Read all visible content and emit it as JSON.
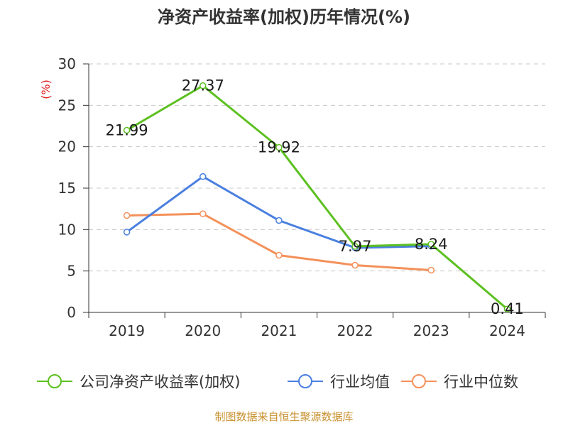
{
  "chart_data": {
    "type": "line",
    "title": "净资产收益率(加权)历年情况(%)",
    "ylabel": "(%)",
    "xlabel": "",
    "categories": [
      "2019",
      "2020",
      "2021",
      "2022",
      "2023",
      "2024"
    ],
    "ylim": [
      0,
      30
    ],
    "yticks": [
      0,
      5,
      10,
      15,
      20,
      25,
      30
    ],
    "grid": true,
    "legend_position": "bottom",
    "series": [
      {
        "name": "公司净资产收益率(加权)",
        "color": "#5cc020",
        "values": [
          21.99,
          27.37,
          19.92,
          7.97,
          8.24,
          0.41
        ],
        "labels": [
          "21.99",
          "27.37",
          "19.92",
          "7.97",
          "8.24",
          "0.41"
        ]
      },
      {
        "name": "行业均值",
        "color": "#4a7fe0",
        "values": [
          9.7,
          16.4,
          11.1,
          7.8,
          8.0,
          null
        ]
      },
      {
        "name": "行业中位数",
        "color": "#f4915a",
        "values": [
          11.7,
          11.9,
          6.9,
          5.7,
          5.1,
          null
        ]
      }
    ],
    "source": "制图数据来自恒生聚源数据库"
  }
}
